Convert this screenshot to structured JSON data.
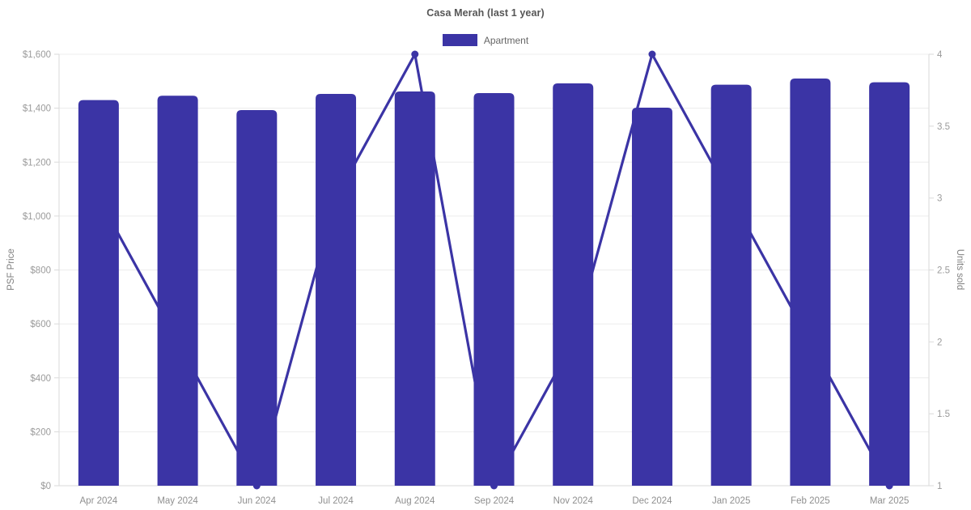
{
  "title": "Casa Merah (last 1 year)",
  "legend": {
    "items": [
      {
        "label": "Apartment",
        "color": "#3b34a5"
      }
    ]
  },
  "axes": {
    "left_title": "PSF Price",
    "right_title": "Units sold"
  },
  "chart_data": {
    "type": "bar",
    "title": "Casa Merah (last 1 year)",
    "categories": [
      "Apr 2024",
      "May 2024",
      "Jun 2024",
      "Jul 2024",
      "Aug 2024",
      "Sep 2024",
      "Nov 2024",
      "Dec 2024",
      "Jan 2025",
      "Feb 2025",
      "Mar 2025"
    ],
    "series": [
      {
        "name": "Apartment",
        "type": "bar",
        "axis": "left",
        "values": [
          1430,
          1446,
          1393,
          1453,
          1462,
          1456,
          1492,
          1402,
          1487,
          1510,
          1496
        ]
      },
      {
        "name": "Units sold",
        "type": "line",
        "axis": "right",
        "values": [
          3,
          2,
          1,
          3,
          4,
          1,
          2,
          4,
          3,
          2,
          1
        ]
      }
    ],
    "left_axis": {
      "label": "PSF Price",
      "min": 0,
      "max": 1600,
      "step": 200,
      "tick_labels": [
        "$0",
        "$200",
        "$400",
        "$600",
        "$800",
        "$1,000",
        "$1,200",
        "$1,400",
        "$1,600"
      ]
    },
    "right_axis": {
      "label": "Units sold",
      "min": 1,
      "max": 4,
      "step": 0.5,
      "tick_labels": [
        "1",
        "1.5",
        "2",
        "2.5",
        "3",
        "3.5",
        "4"
      ]
    },
    "grid": "horizontal lines at left-axis ticks only",
    "legend_position": "top-center"
  },
  "palette": {
    "series": "#3b34a5",
    "gridline": "#ececec",
    "axis_line": "#dadada",
    "tick_text": "#9b9b9b",
    "x_label_text": "#8f8f8f",
    "axis_title_text": "#7f7f7f",
    "title_text": "#565656",
    "legend_text": "#666666",
    "background": "#ffffff"
  }
}
